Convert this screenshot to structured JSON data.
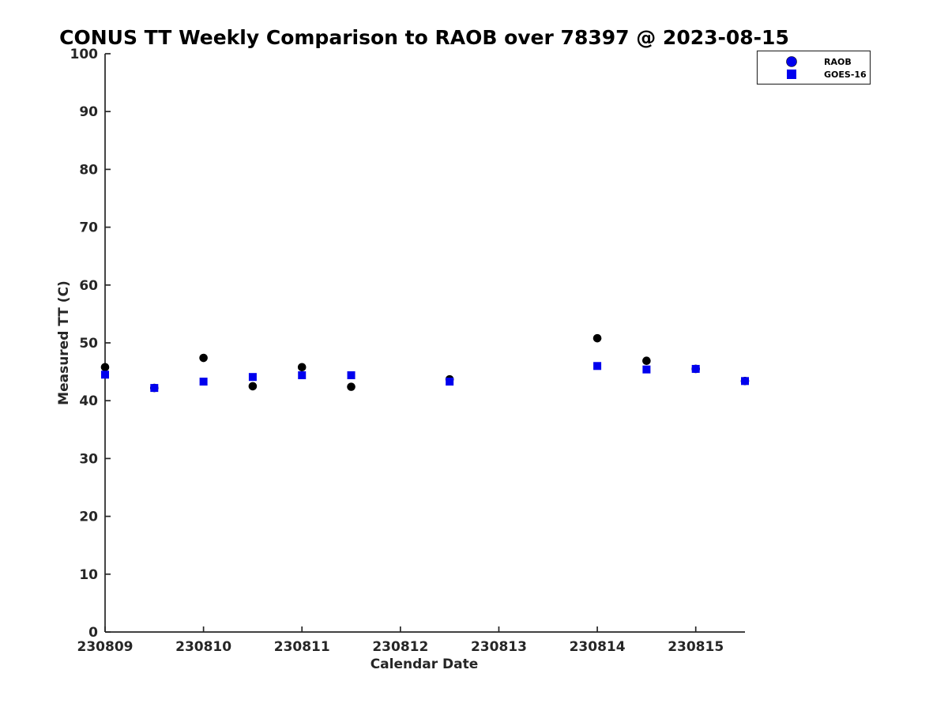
{
  "title": "CONUS TT Weekly Comparison to RAOB over 78397 @ 2023-08-15",
  "colors": {
    "background": "#ffffff",
    "axis": "#262626",
    "tick_label": "#262626",
    "title_text": "#000000",
    "raob_marker": "#000000",
    "goes16_marker": "#0000ee",
    "legend_border": "#333333"
  },
  "chart_data": {
    "type": "scatter",
    "title": "CONUS TT Weekly Comparison to RAOB over 78397 @ 2023-08-15",
    "xlabel": "Calendar Date",
    "ylabel": "Measured TT (C)",
    "xlim": [
      230809,
      230815.5
    ],
    "ylim": [
      0,
      100
    ],
    "xticks": [
      230809,
      230810,
      230811,
      230812,
      230813,
      230814,
      230815
    ],
    "yticks": [
      0,
      10,
      20,
      30,
      40,
      50,
      60,
      70,
      80,
      90,
      100
    ],
    "grid": false,
    "legend": {
      "position": "top-right",
      "entries": [
        {
          "name": "RAOB",
          "marker": "circle",
          "color": "#0000ee"
        },
        {
          "name": "GOES-16",
          "marker": "square",
          "color": "#0000ee"
        }
      ]
    },
    "series": [
      {
        "name": "RAOB",
        "marker": "circle",
        "color": "#000000",
        "points": [
          [
            230809.0,
            45.8
          ],
          [
            230809.5,
            42.2
          ],
          [
            230810.0,
            47.4
          ],
          [
            230810.5,
            42.5
          ],
          [
            230811.0,
            45.8
          ],
          [
            230811.5,
            42.4
          ],
          [
            230812.5,
            43.7
          ],
          [
            230814.0,
            50.8
          ],
          [
            230814.5,
            46.9
          ],
          [
            230815.0,
            45.5
          ],
          [
            230815.5,
            43.4
          ]
        ]
      },
      {
        "name": "GOES-16",
        "marker": "square",
        "color": "#0000ee",
        "points": [
          [
            230809.0,
            44.5
          ],
          [
            230809.5,
            42.2
          ],
          [
            230810.0,
            43.3
          ],
          [
            230810.5,
            44.1
          ],
          [
            230811.0,
            44.4
          ],
          [
            230811.5,
            44.4
          ],
          [
            230812.5,
            43.3
          ],
          [
            230814.0,
            46.0
          ],
          [
            230814.5,
            45.4
          ],
          [
            230815.0,
            45.5
          ],
          [
            230815.5,
            43.4
          ]
        ]
      }
    ]
  }
}
